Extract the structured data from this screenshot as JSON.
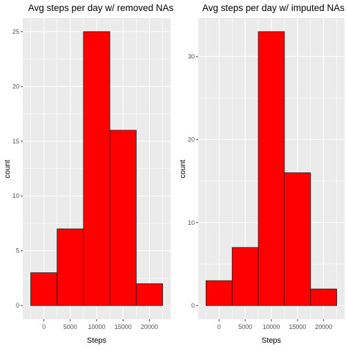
{
  "chart_data": [
    {
      "type": "bar",
      "title": "Avg steps per day w/ removed NAs",
      "xlabel": "Steps",
      "ylabel": "count",
      "bins": [
        {
          "x0": -2500,
          "x1": 2500,
          "count": 3
        },
        {
          "x0": 2500,
          "x1": 7500,
          "count": 7
        },
        {
          "x0": 7500,
          "x1": 12500,
          "count": 25
        },
        {
          "x0": 12500,
          "x1": 17500,
          "count": 16
        },
        {
          "x0": 17500,
          "x1": 22500,
          "count": 2
        }
      ],
      "xlim": [
        -4000,
        24000
      ],
      "ylim": [
        -1.25,
        26.25
      ],
      "xticks": [
        0,
        5000,
        10000,
        15000,
        20000
      ],
      "yticks": [
        0,
        5,
        10,
        15,
        20,
        25
      ],
      "bar_fill": "#ff0000",
      "bar_stroke": "#1a1a1a",
      "panel_bg": "#ebebeb",
      "grid": true
    },
    {
      "type": "bar",
      "title": "Avg steps per day w/ imputed NAs",
      "xlabel": "Steps",
      "ylabel": "count",
      "bins": [
        {
          "x0": -2500,
          "x1": 2500,
          "count": 3
        },
        {
          "x0": 2500,
          "x1": 7500,
          "count": 7
        },
        {
          "x0": 7500,
          "x1": 12500,
          "count": 33
        },
        {
          "x0": 12500,
          "x1": 17500,
          "count": 16
        },
        {
          "x0": 17500,
          "x1": 22500,
          "count": 2
        }
      ],
      "xlim": [
        -4000,
        24000
      ],
      "ylim": [
        -1.65,
        34.65
      ],
      "xticks": [
        0,
        5000,
        10000,
        15000,
        20000
      ],
      "yticks": [
        0,
        10,
        20,
        30
      ],
      "bar_fill": "#ff0000",
      "bar_stroke": "#1a1a1a",
      "panel_bg": "#ebebeb",
      "grid": true
    }
  ]
}
